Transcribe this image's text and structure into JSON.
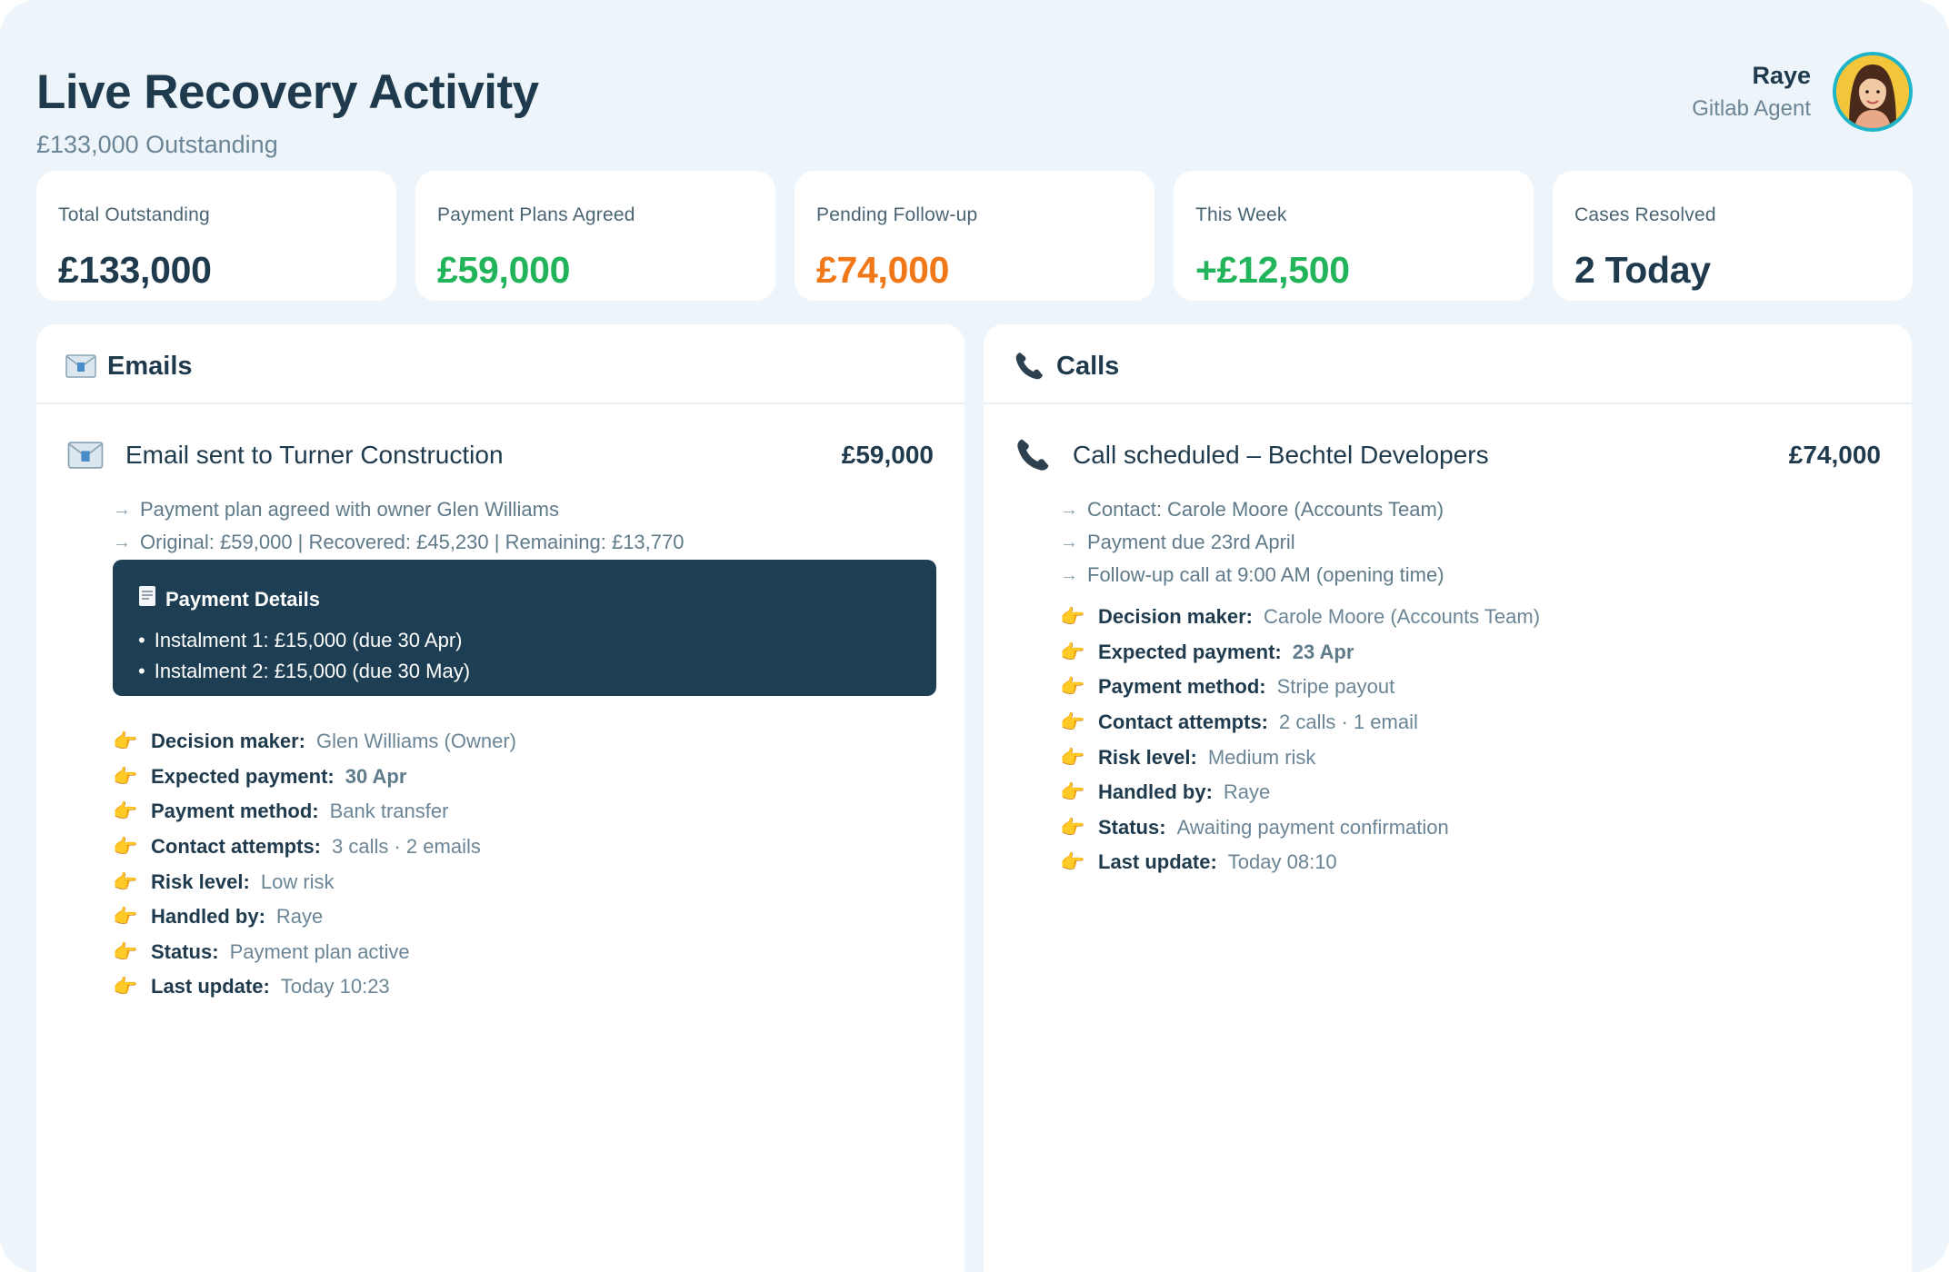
{
  "header": {
    "title": "Live Recovery Activity",
    "subtitle": "£133,000 Outstanding"
  },
  "user": {
    "name": "Raye",
    "role": "Gitlab Agent"
  },
  "stats": [
    {
      "label": "Total Outstanding",
      "value": "£133,000",
      "color": "#1e3a4c"
    },
    {
      "label": "Payment Plans Agreed",
      "value": "£59,000",
      "color": "#22b45a"
    },
    {
      "label": "Pending Follow-up",
      "value": "£74,000",
      "color": "#f07818"
    },
    {
      "label": "This Week",
      "value": "+£12,500",
      "color": "#22b45a"
    },
    {
      "label": "Cases Resolved",
      "value": "2 Today",
      "color": "#1e3a4c"
    }
  ],
  "emails": {
    "panel_title": "Emails",
    "item": {
      "title": "Email sent to Turner Construction",
      "amount": "£59,000",
      "lines": [
        "Payment plan agreed with owner Glen Williams",
        "Original: £59,000 | Recovered: £45,230 | Remaining: £13,770"
      ],
      "details": {
        "title": "Payment Details",
        "items": [
          "Instalment 1: £15,000 (due 30 Apr)",
          "Instalment 2: £15,000 (due 30 May)"
        ]
      },
      "facts": [
        {
          "label": "Decision maker:",
          "value": "Glen Williams (Owner)"
        },
        {
          "label": "Expected payment:",
          "value": "30 Apr"
        },
        {
          "label": "Payment method:",
          "value": "Bank transfer"
        },
        {
          "label": "Contact attempts:",
          "value": "3 calls · 2 emails"
        },
        {
          "label": "Risk level:",
          "value": "Low risk"
        },
        {
          "label": "Handled by:",
          "value": "Raye"
        },
        {
          "label": "Status:",
          "value": "Payment plan active"
        },
        {
          "label": "Last update:",
          "value": "Today 10:23"
        }
      ]
    }
  },
  "calls": {
    "panel_title": "Calls",
    "item": {
      "title": "Call scheduled – Bechtel Developers",
      "amount": "£74,000",
      "lines": [
        "Contact: Carole Moore (Accounts Team)",
        "Payment due 23rd April",
        "Follow-up call at 9:00 AM (opening time)"
      ],
      "facts": [
        {
          "label": "Decision maker:",
          "value": "Carole Moore (Accounts Team)"
        },
        {
          "label": "Expected payment:",
          "value": "23 Apr"
        },
        {
          "label": "Payment method:",
          "value": "Stripe payout"
        },
        {
          "label": "Contact attempts:",
          "value": "2 calls · 1 email"
        },
        {
          "label": "Risk level:",
          "value": "Medium risk"
        },
        {
          "label": "Handled by:",
          "value": "Raye"
        },
        {
          "label": "Status:",
          "value": "Awaiting payment confirmation"
        },
        {
          "label": "Last update:",
          "value": "Today 08:10"
        }
      ]
    }
  }
}
